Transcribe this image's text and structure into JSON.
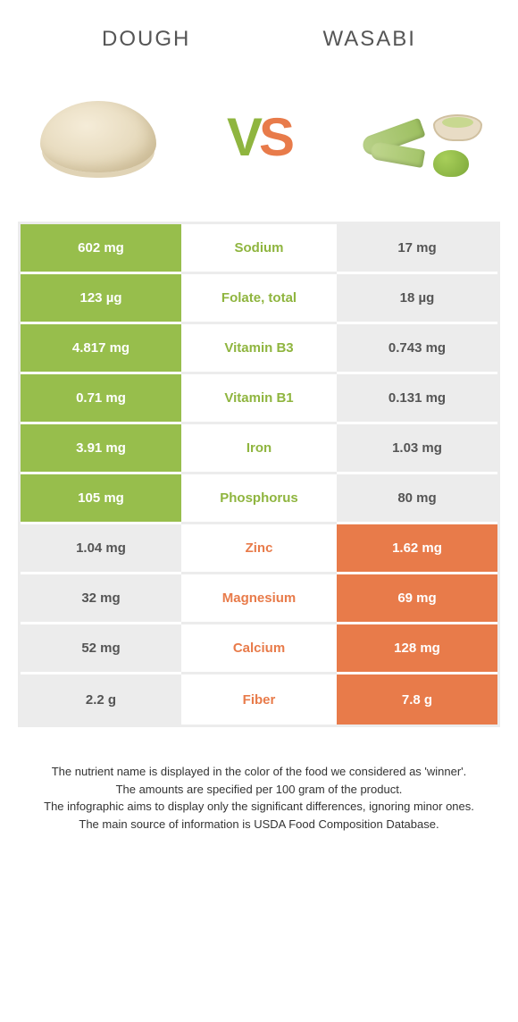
{
  "header": {
    "left_title": "Dough",
    "right_title": "Wasabi"
  },
  "vs": {
    "v": "V",
    "s": "S"
  },
  "colors": {
    "left_fill": "#97be4c",
    "right_fill": "#e87b4a",
    "empty": "#ececec",
    "left_text": "#8fb53f",
    "right_text": "#e87b4a"
  },
  "rows": [
    {
      "left": "602 mg",
      "label": "Sodium",
      "right": "17 mg",
      "winner": "left"
    },
    {
      "left": "123 µg",
      "label": "Folate, total",
      "right": "18 µg",
      "winner": "left"
    },
    {
      "left": "4.817 mg",
      "label": "Vitamin B3",
      "right": "0.743 mg",
      "winner": "left"
    },
    {
      "left": "0.71 mg",
      "label": "Vitamin B1",
      "right": "0.131 mg",
      "winner": "left"
    },
    {
      "left": "3.91 mg",
      "label": "Iron",
      "right": "1.03 mg",
      "winner": "left"
    },
    {
      "left": "105 mg",
      "label": "Phosphorus",
      "right": "80 mg",
      "winner": "left"
    },
    {
      "left": "1.04 mg",
      "label": "Zinc",
      "right": "1.62 mg",
      "winner": "right"
    },
    {
      "left": "32 mg",
      "label": "Magnesium",
      "right": "69 mg",
      "winner": "right"
    },
    {
      "left": "52 mg",
      "label": "Calcium",
      "right": "128 mg",
      "winner": "right"
    },
    {
      "left": "2.2 g",
      "label": "Fiber",
      "right": "7.8 g",
      "winner": "right"
    }
  ],
  "footer": {
    "line1": "The nutrient name is displayed in the color of the food we considered as 'winner'.",
    "line2": "The amounts are specified per 100 gram of the product.",
    "line3": "The infographic aims to display only the significant differences, ignoring minor ones.",
    "line4": "The main source of information is USDA Food Composition Database."
  }
}
